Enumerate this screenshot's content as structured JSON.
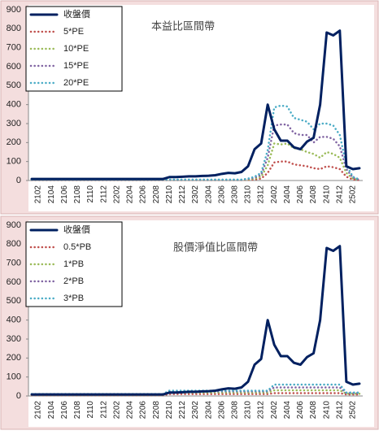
{
  "chart_data": [
    {
      "type": "line",
      "title": "本益比區間帶",
      "categories": [
        null,
        "2102",
        null,
        "2104",
        null,
        "2106",
        null,
        "2108",
        null,
        "2110",
        null,
        "2112",
        null,
        "2202",
        null,
        "2204",
        null,
        "2206",
        null,
        "2208",
        null,
        "2210",
        null,
        "2212",
        null,
        "2302",
        null,
        "2304",
        null,
        "2306",
        null,
        "2308",
        null,
        "2310",
        null,
        "2312",
        null,
        "2402",
        null,
        "2404",
        null,
        "2406",
        null,
        "2408",
        null,
        "2410",
        null,
        "2412",
        null,
        "2502",
        null
      ],
      "series": [
        {
          "name": "收盤價",
          "color": "#002060",
          "values": [
            8,
            8,
            8,
            8,
            8,
            8,
            8,
            8,
            8,
            8,
            8,
            8,
            8,
            8,
            8,
            8,
            8,
            8,
            8,
            8,
            8,
            18,
            18,
            20,
            22,
            22,
            24,
            25,
            28,
            35,
            40,
            38,
            45,
            75,
            165,
            195,
            400,
            270,
            210,
            210,
            175,
            165,
            205,
            225,
            400,
            780,
            765,
            790,
            75,
            60,
            65
          ]
        },
        {
          "name": "5*PE",
          "color": "#c0504d",
          "values": [
            2,
            2,
            2,
            2,
            2,
            2,
            2,
            2,
            2,
            2,
            2,
            2,
            2,
            2,
            2,
            2,
            2,
            2,
            2,
            2,
            2,
            2,
            2,
            2,
            2,
            2,
            2,
            2,
            2,
            2,
            2,
            2,
            2,
            3,
            5,
            10,
            40,
            95,
            100,
            100,
            85,
            80,
            75,
            65,
            60,
            75,
            70,
            60,
            20,
            5,
            2
          ]
        },
        {
          "name": "10*PE",
          "color": "#9bbb59",
          "values": [
            3,
            3,
            3,
            3,
            3,
            3,
            3,
            3,
            3,
            3,
            3,
            3,
            3,
            3,
            3,
            3,
            3,
            3,
            3,
            3,
            3,
            3,
            3,
            3,
            3,
            3,
            3,
            3,
            3,
            3,
            3,
            3,
            3,
            5,
            10,
            20,
            80,
            195,
            190,
            195,
            170,
            165,
            150,
            140,
            120,
            150,
            140,
            120,
            40,
            10,
            3
          ]
        },
        {
          "name": "15*PE",
          "color": "#8064a2",
          "values": [
            4,
            4,
            4,
            4,
            4,
            4,
            4,
            4,
            4,
            4,
            4,
            4,
            4,
            4,
            4,
            4,
            4,
            4,
            4,
            4,
            4,
            4,
            4,
            4,
            4,
            4,
            4,
            4,
            4,
            4,
            4,
            4,
            4,
            8,
            15,
            30,
            120,
            290,
            295,
            295,
            250,
            240,
            240,
            200,
            230,
            230,
            220,
            180,
            60,
            15,
            4
          ]
        },
        {
          "name": "20*PE",
          "color": "#4bacc6",
          "values": [
            5,
            5,
            5,
            5,
            5,
            5,
            5,
            5,
            5,
            5,
            5,
            5,
            5,
            5,
            5,
            5,
            5,
            5,
            5,
            5,
            5,
            5,
            5,
            5,
            5,
            5,
            5,
            5,
            5,
            5,
            5,
            5,
            5,
            10,
            20,
            40,
            160,
            385,
            395,
            390,
            330,
            320,
            310,
            270,
            300,
            300,
            290,
            240,
            80,
            20,
            5
          ]
        }
      ],
      "ylim": [
        0,
        900
      ],
      "yticks": [
        0,
        100,
        200,
        300,
        400,
        500,
        600,
        700,
        800,
        900
      ],
      "grid": false,
      "legend": "upper left"
    },
    {
      "type": "line",
      "title": "股價淨值比區間帶",
      "categories": [
        null,
        "2102",
        null,
        "2104",
        null,
        "2106",
        null,
        "2108",
        null,
        "2110",
        null,
        "2112",
        null,
        "2202",
        null,
        "2204",
        null,
        "2206",
        null,
        "2208",
        null,
        "2210",
        null,
        "2212",
        null,
        "2302",
        null,
        "2304",
        null,
        "2306",
        null,
        "2308",
        null,
        "2310",
        null,
        "2312",
        null,
        "2402",
        null,
        "2404",
        null,
        "2406",
        null,
        "2408",
        null,
        "2410",
        null,
        "2412",
        null,
        "2502",
        null
      ],
      "series": [
        {
          "name": "收盤價",
          "color": "#002060",
          "values": [
            8,
            8,
            8,
            8,
            8,
            8,
            8,
            8,
            8,
            8,
            8,
            8,
            8,
            8,
            8,
            8,
            8,
            8,
            8,
            8,
            8,
            18,
            18,
            20,
            22,
            22,
            24,
            25,
            28,
            35,
            40,
            38,
            45,
            75,
            165,
            195,
            400,
            270,
            210,
            210,
            175,
            165,
            205,
            225,
            400,
            780,
            765,
            790,
            75,
            60,
            65
          ]
        },
        {
          "name": "0.5*PB",
          "color": "#c0504d",
          "values": [
            4,
            4,
            4,
            4,
            4,
            4,
            4,
            4,
            4,
            4,
            4,
            4,
            4,
            4,
            4,
            4,
            4,
            4,
            4,
            4,
            4,
            10,
            10,
            10,
            10,
            10,
            10,
            10,
            10,
            10,
            10,
            10,
            10,
            10,
            10,
            10,
            10,
            15,
            15,
            15,
            15,
            15,
            15,
            15,
            15,
            15,
            15,
            15,
            8,
            8,
            8
          ]
        },
        {
          "name": "1*PB",
          "color": "#9bbb59",
          "values": [
            6,
            6,
            6,
            6,
            6,
            6,
            6,
            6,
            6,
            6,
            6,
            6,
            6,
            6,
            6,
            6,
            6,
            6,
            6,
            6,
            6,
            18,
            18,
            18,
            18,
            18,
            18,
            18,
            18,
            18,
            18,
            18,
            18,
            18,
            18,
            18,
            18,
            30,
            30,
            30,
            30,
            30,
            30,
            30,
            30,
            30,
            30,
            30,
            12,
            12,
            12
          ]
        },
        {
          "name": "2*PB",
          "color": "#8064a2",
          "values": [
            8,
            8,
            8,
            8,
            8,
            8,
            8,
            8,
            8,
            8,
            8,
            8,
            8,
            8,
            8,
            8,
            8,
            8,
            8,
            8,
            8,
            24,
            24,
            24,
            24,
            24,
            24,
            24,
            24,
            24,
            24,
            24,
            24,
            24,
            24,
            24,
            24,
            45,
            45,
            45,
            45,
            45,
            45,
            45,
            45,
            45,
            45,
            45,
            15,
            15,
            15
          ]
        },
        {
          "name": "3*PB",
          "color": "#4bacc6",
          "values": [
            10,
            10,
            10,
            10,
            10,
            10,
            10,
            10,
            10,
            10,
            10,
            10,
            10,
            10,
            10,
            10,
            10,
            10,
            10,
            10,
            10,
            28,
            28,
            28,
            28,
            28,
            28,
            28,
            28,
            28,
            28,
            28,
            28,
            28,
            28,
            28,
            28,
            60,
            60,
            60,
            60,
            60,
            60,
            60,
            60,
            60,
            60,
            60,
            18,
            18,
            18
          ]
        }
      ],
      "ylim": [
        0,
        900
      ],
      "yticks": [
        0,
        100,
        200,
        300,
        400,
        500,
        600,
        700,
        800,
        900
      ],
      "grid": false,
      "legend": "upper left"
    }
  ]
}
